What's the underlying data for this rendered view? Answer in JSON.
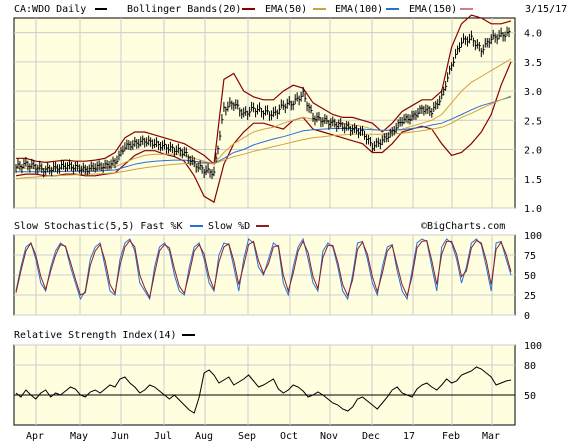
{
  "colors": {
    "background": "#ffffff",
    "panel": "#ffffe0",
    "grid": "#cccccc",
    "price": "#000000",
    "bollinger": "#8b0000",
    "ema50": "#8b0000",
    "ema100": "#d2a040",
    "ema150": "#2a6edb",
    "fastK": "#2a6edb",
    "slowD": "#8b2020",
    "rsi": "#000000"
  },
  "header": {
    "ticker": "CA:WDO Daily",
    "bollinger": "Bollinger Bands(20)",
    "ema50": "EMA(50)",
    "ema100": "EMA(100)",
    "ema150": "EMA(150)",
    "date": "3/15/17"
  },
  "stoch_header": {
    "label": "Slow Stochastic(5,5) Fast %K",
    "slow": "Slow %D",
    "watermark": "©BigCharts.com"
  },
  "rsi_header": {
    "label": "Relative Strength Index(14)"
  },
  "chart_data": [
    {
      "type": "line",
      "name": "price",
      "x_months": [
        "Apr",
        "May",
        "Jun",
        "Jul",
        "Aug",
        "Sep",
        "Oct",
        "Nov",
        "Dec",
        "17",
        "Feb",
        "Mar"
      ],
      "ylim": [
        1.0,
        4.25
      ],
      "yticks": [
        "1.0",
        "1.5",
        "2.0",
        "2.5",
        "3.0",
        "3.5",
        "4.0"
      ],
      "grid": true,
      "x": [
        0,
        5,
        10,
        15,
        20,
        25,
        30,
        35,
        40,
        45,
        50,
        55,
        60,
        65,
        70,
        75,
        80,
        85,
        90,
        95,
        100,
        105,
        110,
        115,
        120,
        125,
        130,
        135,
        140,
        145,
        150,
        155,
        160,
        165,
        170,
        175,
        180,
        185,
        190,
        195,
        200,
        205,
        210,
        215,
        220,
        225,
        230,
        235,
        240,
        245,
        250
      ],
      "series": [
        {
          "name": "Price",
          "values": [
            1.7,
            1.75,
            1.7,
            1.65,
            1.68,
            1.72,
            1.7,
            1.65,
            1.7,
            1.72,
            1.78,
            2.05,
            2.1,
            2.15,
            2.1,
            2.05,
            2.0,
            1.95,
            1.75,
            1.65,
            1.6,
            2.7,
            2.8,
            2.6,
            2.7,
            2.65,
            2.6,
            2.75,
            2.8,
            2.95,
            2.55,
            2.5,
            2.45,
            2.4,
            2.35,
            2.3,
            2.05,
            2.15,
            2.3,
            2.5,
            2.55,
            2.7,
            2.65,
            2.9,
            3.45,
            3.85,
            3.9,
            3.7,
            3.9,
            3.95,
            4.0
          ]
        },
        {
          "name": "Bollinger Bands(20) Upper",
          "values": [
            1.85,
            1.85,
            1.8,
            1.78,
            1.8,
            1.82,
            1.8,
            1.8,
            1.82,
            1.85,
            1.95,
            2.2,
            2.3,
            2.3,
            2.25,
            2.2,
            2.15,
            2.1,
            2.0,
            1.9,
            1.75,
            3.2,
            3.3,
            3.0,
            2.9,
            2.85,
            2.85,
            3.0,
            3.1,
            3.05,
            2.8,
            2.7,
            2.6,
            2.55,
            2.55,
            2.5,
            2.45,
            2.3,
            2.45,
            2.65,
            2.75,
            2.85,
            2.85,
            3.0,
            3.75,
            4.15,
            4.3,
            4.25,
            4.15,
            4.15,
            4.2
          ]
        },
        {
          "name": "Bollinger Bands(20) Lower",
          "values": [
            1.55,
            1.58,
            1.58,
            1.55,
            1.55,
            1.58,
            1.58,
            1.55,
            1.55,
            1.58,
            1.6,
            1.75,
            1.9,
            1.98,
            1.98,
            1.92,
            1.88,
            1.8,
            1.55,
            1.2,
            1.1,
            1.75,
            2.1,
            2.3,
            2.45,
            2.45,
            2.4,
            2.35,
            2.5,
            2.55,
            2.35,
            2.3,
            2.25,
            2.2,
            2.15,
            2.1,
            1.95,
            1.95,
            2.1,
            2.3,
            2.35,
            2.4,
            2.35,
            2.1,
            1.9,
            1.95,
            2.1,
            2.3,
            2.6,
            3.1,
            3.5
          ]
        },
        {
          "name": "EMA(50)",
          "values": [
            1.68,
            1.68,
            1.68,
            1.67,
            1.67,
            1.68,
            1.68,
            1.68,
            1.68,
            1.69,
            1.7,
            1.78,
            1.85,
            1.9,
            1.92,
            1.92,
            1.92,
            1.9,
            1.85,
            1.8,
            1.75,
            1.95,
            2.1,
            2.2,
            2.3,
            2.35,
            2.38,
            2.45,
            2.5,
            2.55,
            2.52,
            2.5,
            2.48,
            2.45,
            2.42,
            2.4,
            2.35,
            2.32,
            2.33,
            2.35,
            2.4,
            2.45,
            2.5,
            2.6,
            2.8,
            3.0,
            3.15,
            3.25,
            3.35,
            3.45,
            3.55
          ]
        },
        {
          "name": "EMA(100)",
          "values": [
            1.62,
            1.62,
            1.62,
            1.62,
            1.62,
            1.63,
            1.63,
            1.63,
            1.63,
            1.64,
            1.65,
            1.7,
            1.75,
            1.78,
            1.8,
            1.81,
            1.82,
            1.82,
            1.8,
            1.78,
            1.76,
            1.85,
            1.95,
            2.0,
            2.08,
            2.13,
            2.18,
            2.22,
            2.27,
            2.32,
            2.34,
            2.35,
            2.36,
            2.36,
            2.36,
            2.35,
            2.34,
            2.33,
            2.33,
            2.34,
            2.36,
            2.38,
            2.42,
            2.45,
            2.52,
            2.6,
            2.68,
            2.75,
            2.8,
            2.85,
            2.9
          ]
        },
        {
          "name": "EMA(150)",
          "values": [
            1.5,
            1.52,
            1.53,
            1.54,
            1.55,
            1.56,
            1.57,
            1.58,
            1.58,
            1.59,
            1.6,
            1.63,
            1.66,
            1.69,
            1.71,
            1.73,
            1.75,
            1.76,
            1.76,
            1.76,
            1.76,
            1.82,
            1.88,
            1.92,
            1.97,
            2.01,
            2.05,
            2.09,
            2.13,
            2.17,
            2.2,
            2.22,
            2.24,
            2.25,
            2.26,
            2.26,
            2.26,
            2.26,
            2.27,
            2.28,
            2.3,
            2.32,
            2.35,
            2.38,
            2.45,
            2.55,
            2.62,
            2.7,
            2.78,
            2.85,
            2.92
          ]
        }
      ]
    },
    {
      "type": "line",
      "name": "stochastic",
      "ylim": [
        0,
        100
      ],
      "yticks": [
        "0",
        "25",
        "50",
        "75",
        "100"
      ],
      "grid": true,
      "series": [
        {
          "name": "Fast %K",
          "values": [
            30,
            60,
            85,
            90,
            70,
            40,
            30,
            60,
            80,
            90,
            85,
            60,
            40,
            20,
            30,
            70,
            85,
            90,
            60,
            30,
            25,
            70,
            90,
            95,
            80,
            40,
            30,
            20,
            60,
            85,
            90,
            80,
            50,
            30,
            25,
            60,
            85,
            90,
            70,
            40,
            30,
            75,
            90,
            88,
            60,
            30,
            70,
            95,
            90,
            60,
            50,
            70,
            90,
            85,
            40,
            25,
            60,
            85,
            95,
            70,
            40,
            30,
            80,
            90,
            85,
            60,
            30,
            20,
            50,
            90,
            92,
            70,
            40,
            25,
            60,
            85,
            88,
            55,
            30,
            20,
            55,
            90,
            95,
            92,
            60,
            30,
            85,
            95,
            90,
            70,
            40,
            60,
            90,
            95,
            88,
            60,
            30,
            90,
            92,
            70,
            50
          ]
        },
        {
          "name": "Slow %D",
          "values": [
            28,
            55,
            80,
            90,
            75,
            48,
            32,
            55,
            75,
            88,
            86,
            66,
            45,
            25,
            28,
            62,
            80,
            88,
            68,
            38,
            27,
            62,
            85,
            93,
            85,
            50,
            34,
            22,
            52,
            80,
            88,
            84,
            58,
            36,
            27,
            52,
            80,
            88,
            76,
            48,
            32,
            66,
            85,
            89,
            68,
            38,
            62,
            88,
            92,
            68,
            52,
            64,
            85,
            87,
            50,
            30,
            52,
            80,
            92,
            78,
            48,
            33,
            72,
            87,
            87,
            66,
            38,
            24,
            44,
            82,
            91,
            76,
            48,
            29,
            52,
            80,
            87,
            62,
            38,
            24,
            48,
            84,
            92,
            93,
            68,
            38,
            76,
            92,
            92,
            76,
            48,
            55,
            84,
            93,
            90,
            68,
            38,
            82,
            91,
            76,
            54
          ]
        }
      ]
    },
    {
      "type": "line",
      "name": "rsi",
      "ylim": [
        20,
        100
      ],
      "yticks": [
        "50",
        "80",
        "100"
      ],
      "reference_line": 50,
      "series": [
        {
          "name": "Relative Strength Index(14)",
          "values": [
            52,
            48,
            55,
            50,
            46,
            52,
            55,
            48,
            52,
            50,
            54,
            58,
            56,
            50,
            48,
            53,
            55,
            52,
            56,
            60,
            58,
            66,
            68,
            62,
            58,
            52,
            55,
            60,
            58,
            54,
            50,
            46,
            50,
            45,
            40,
            35,
            32,
            48,
            72,
            75,
            70,
            62,
            65,
            68,
            60,
            63,
            66,
            70,
            64,
            58,
            60,
            63,
            66,
            56,
            52,
            55,
            60,
            58,
            54,
            48,
            50,
            53,
            50,
            46,
            42,
            40,
            36,
            34,
            38,
            46,
            48,
            44,
            40,
            36,
            42,
            48,
            55,
            58,
            52,
            50,
            48,
            56,
            60,
            62,
            58,
            55,
            60,
            66,
            62,
            64,
            70,
            72,
            74,
            78,
            76,
            72,
            68,
            60,
            62,
            64,
            65
          ]
        }
      ]
    }
  ],
  "x_axis": {
    "labels": [
      "Apr",
      "May",
      "Jun",
      "Jul",
      "Aug",
      "Sep",
      "Oct",
      "Nov",
      "Dec",
      "17",
      "Feb",
      "Mar"
    ]
  }
}
